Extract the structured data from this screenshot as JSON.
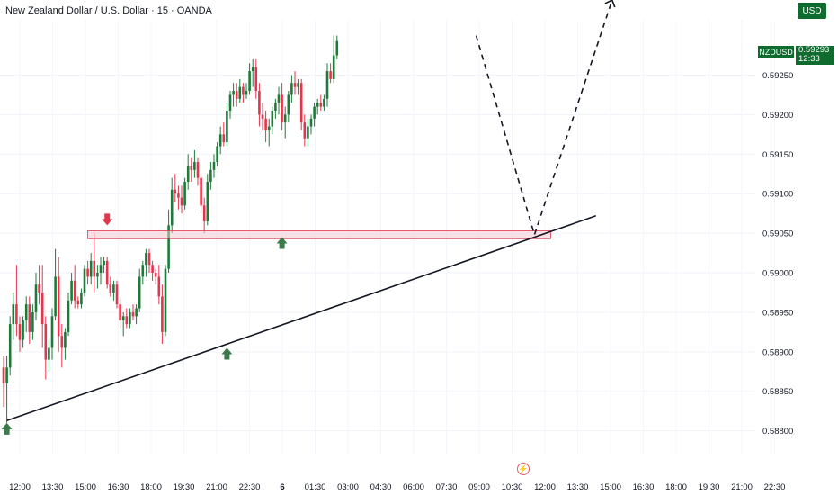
{
  "header": {
    "title": "New Zealand Dollar / U.S. Dollar · 15 · OANDA",
    "currency_button": "USD"
  },
  "price_badge": {
    "symbol": "NZDUSD",
    "price": "0.59293",
    "countdown": "12:33"
  },
  "icons": {
    "event_marker": "lightning-icon"
  },
  "colors": {
    "up": "#1f7a3a",
    "down": "#e0364e",
    "zone_fill": "#f6c9cf",
    "zone_stroke": "#e0364e",
    "trendline": "#131722",
    "arrow_up": "#3d7a4b",
    "arrow_down": "#e0364e"
  },
  "chart_data": {
    "type": "candlestick",
    "symbol": "NZDUSD",
    "timeframe": "15",
    "source": "OANDA",
    "x_ticks": [
      "12:00",
      "13:30",
      "15:00",
      "16:30",
      "18:00",
      "19:30",
      "21:00",
      "22:30",
      "6",
      "01:30",
      "03:00",
      "04:30",
      "06:00",
      "07:30",
      "09:00",
      "10:30",
      "12:00",
      "13:30",
      "15:00",
      "16:30",
      "18:00",
      "19:30",
      "21:00",
      "22:30"
    ],
    "y_ticks": [
      "0.58800",
      "0.58850",
      "0.58900",
      "0.58950",
      "0.59000",
      "0.59050",
      "0.59100",
      "0.59150",
      "0.59200",
      "0.59250"
    ],
    "ylim": [
      0.5877,
      0.5932
    ],
    "candles": [
      [
        0.5888,
        0.58895,
        0.5883,
        0.5886
      ],
      [
        0.5886,
        0.58895,
        0.5881,
        0.5888
      ],
      [
        0.5888,
        0.58945,
        0.5887,
        0.58935
      ],
      [
        0.58935,
        0.58975,
        0.58915,
        0.5896
      ],
      [
        0.5896,
        0.5901,
        0.5892,
        0.58935
      ],
      [
        0.58935,
        0.58945,
        0.589,
        0.58915
      ],
      [
        0.58915,
        0.58945,
        0.58905,
        0.5894
      ],
      [
        0.5894,
        0.5897,
        0.58925,
        0.5896
      ],
      [
        0.5896,
        0.5897,
        0.5891,
        0.58925
      ],
      [
        0.58925,
        0.5896,
        0.58915,
        0.5895
      ],
      [
        0.5895,
        0.59,
        0.5894,
        0.58985
      ],
      [
        0.58985,
        0.5901,
        0.5896,
        0.58975
      ],
      [
        0.58975,
        0.5901,
        0.58905,
        0.58935
      ],
      [
        0.58935,
        0.58945,
        0.58865,
        0.5889
      ],
      [
        0.5889,
        0.58915,
        0.58875,
        0.58905
      ],
      [
        0.58905,
        0.58955,
        0.5889,
        0.58945
      ],
      [
        0.58945,
        0.5903,
        0.5894,
        0.58995
      ],
      [
        0.58995,
        0.5902,
        0.589,
        0.5892
      ],
      [
        0.5892,
        0.58935,
        0.5888,
        0.58905
      ],
      [
        0.58905,
        0.5893,
        0.5889,
        0.58925
      ],
      [
        0.58925,
        0.58975,
        0.5892,
        0.58965
      ],
      [
        0.58965,
        0.59,
        0.5896,
        0.5899
      ],
      [
        0.5899,
        0.5901,
        0.58955,
        0.58965
      ],
      [
        0.58965,
        0.5897,
        0.58955,
        0.5896
      ],
      [
        0.5896,
        0.5898,
        0.58955,
        0.58975
      ],
      [
        0.58975,
        0.5901,
        0.5897,
        0.59005
      ],
      [
        0.59005,
        0.59015,
        0.58985,
        0.58995
      ],
      [
        0.58995,
        0.59025,
        0.58985,
        0.59015
      ],
      [
        0.59015,
        0.5905,
        0.58975,
        0.58995
      ],
      [
        0.58995,
        0.5901,
        0.5898,
        0.59
      ],
      [
        0.59,
        0.5902,
        0.58985,
        0.5901
      ],
      [
        0.5901,
        0.5902,
        0.59,
        0.59015
      ],
      [
        0.59015,
        0.5902,
        0.5898,
        0.58985
      ],
      [
        0.58985,
        0.58995,
        0.5897,
        0.58975
      ],
      [
        0.58975,
        0.5899,
        0.58965,
        0.58985
      ],
      [
        0.58985,
        0.5899,
        0.58955,
        0.5896
      ],
      [
        0.5896,
        0.5897,
        0.5893,
        0.5894
      ],
      [
        0.5894,
        0.5895,
        0.5892,
        0.58945
      ],
      [
        0.58945,
        0.58955,
        0.5893,
        0.58935
      ],
      [
        0.58935,
        0.58955,
        0.5893,
        0.5895
      ],
      [
        0.5895,
        0.5896,
        0.5894,
        0.58945
      ],
      [
        0.58945,
        0.5896,
        0.58935,
        0.58955
      ],
      [
        0.58955,
        0.59005,
        0.5895,
        0.58995
      ],
      [
        0.58995,
        0.59015,
        0.58985,
        0.5901
      ],
      [
        0.5901,
        0.5903,
        0.58995,
        0.59025
      ],
      [
        0.59025,
        0.5903,
        0.59,
        0.5901
      ],
      [
        0.5901,
        0.59015,
        0.5899,
        0.59
      ],
      [
        0.59,
        0.59005,
        0.58985,
        0.58995
      ],
      [
        0.58995,
        0.5901,
        0.5896,
        0.5897
      ],
      [
        0.5897,
        0.58985,
        0.5891,
        0.58925
      ],
      [
        0.58925,
        0.5901,
        0.5892,
        0.59005
      ],
      [
        0.59005,
        0.5908,
        0.59,
        0.5906
      ],
      [
        0.5906,
        0.5912,
        0.5905,
        0.59105
      ],
      [
        0.59105,
        0.59125,
        0.5909,
        0.591
      ],
      [
        0.591,
        0.5911,
        0.5908,
        0.59095
      ],
      [
        0.59095,
        0.5911,
        0.59075,
        0.59085
      ],
      [
        0.59085,
        0.5912,
        0.5908,
        0.59115
      ],
      [
        0.59115,
        0.5915,
        0.59105,
        0.59135
      ],
      [
        0.59135,
        0.59145,
        0.59115,
        0.5913
      ],
      [
        0.5913,
        0.59155,
        0.5912,
        0.5914
      ],
      [
        0.5914,
        0.59145,
        0.5911,
        0.5912
      ],
      [
        0.5912,
        0.59125,
        0.59075,
        0.59085
      ],
      [
        0.59085,
        0.59095,
        0.5905,
        0.59065
      ],
      [
        0.59065,
        0.59125,
        0.5906,
        0.59115
      ],
      [
        0.59115,
        0.5914,
        0.59105,
        0.5913
      ],
      [
        0.5913,
        0.5915,
        0.5912,
        0.5914
      ],
      [
        0.5914,
        0.59165,
        0.59135,
        0.5916
      ],
      [
        0.5916,
        0.59185,
        0.5915,
        0.59175
      ],
      [
        0.59175,
        0.5919,
        0.5916,
        0.59165
      ],
      [
        0.59165,
        0.59215,
        0.5916,
        0.59205
      ],
      [
        0.59205,
        0.5923,
        0.59195,
        0.59225
      ],
      [
        0.59225,
        0.5924,
        0.5921,
        0.5923
      ],
      [
        0.5923,
        0.5924,
        0.5921,
        0.5922
      ],
      [
        0.5922,
        0.59245,
        0.59215,
        0.59235
      ],
      [
        0.59235,
        0.5924,
        0.59215,
        0.59225
      ],
      [
        0.59225,
        0.5924,
        0.5922,
        0.5923
      ],
      [
        0.5923,
        0.59265,
        0.59225,
        0.59255
      ],
      [
        0.59255,
        0.5927,
        0.59235,
        0.5926
      ],
      [
        0.5926,
        0.5927,
        0.5922,
        0.5923
      ],
      [
        0.5923,
        0.5924,
        0.59185,
        0.592
      ],
      [
        0.592,
        0.59215,
        0.5918,
        0.59195
      ],
      [
        0.59195,
        0.59205,
        0.59165,
        0.5918
      ],
      [
        0.5918,
        0.59195,
        0.5916,
        0.59185
      ],
      [
        0.59185,
        0.5921,
        0.59175,
        0.59205
      ],
      [
        0.59205,
        0.5922,
        0.59195,
        0.59215
      ],
      [
        0.59215,
        0.59235,
        0.592,
        0.59225
      ],
      [
        0.59225,
        0.5924,
        0.5918,
        0.5919
      ],
      [
        0.5919,
        0.5921,
        0.5917,
        0.592
      ],
      [
        0.592,
        0.5923,
        0.5919,
        0.59225
      ],
      [
        0.59225,
        0.5925,
        0.59215,
        0.5924
      ],
      [
        0.5924,
        0.59255,
        0.59225,
        0.59235
      ],
      [
        0.59235,
        0.59245,
        0.59225,
        0.5924
      ],
      [
        0.5924,
        0.59245,
        0.5918,
        0.5919
      ],
      [
        0.5919,
        0.592,
        0.5916,
        0.5917
      ],
      [
        0.5917,
        0.59195,
        0.5916,
        0.59185
      ],
      [
        0.59185,
        0.592,
        0.59175,
        0.59195
      ],
      [
        0.59195,
        0.59215,
        0.59185,
        0.5921
      ],
      [
        0.5921,
        0.5922,
        0.592,
        0.59215
      ],
      [
        0.59215,
        0.59225,
        0.59205,
        0.5921
      ],
      [
        0.5921,
        0.59225,
        0.59205,
        0.5922
      ],
      [
        0.5922,
        0.59265,
        0.5921,
        0.59255
      ],
      [
        0.59255,
        0.59265,
        0.5924,
        0.59245
      ],
      [
        0.59245,
        0.593,
        0.5924,
        0.59275
      ],
      [
        0.59275,
        0.593,
        0.5927,
        0.59293
      ]
    ],
    "annotations": {
      "resistance_zone": {
        "y_low": 0.59043,
        "y_high": 0.59053,
        "from_index": 26,
        "to_index": 169
      },
      "trendline": {
        "from": [
          1,
          0.58813
        ],
        "to": [
          183,
          0.59072
        ]
      },
      "projection_path": [
        [
          146,
          0.593
        ],
        [
          164,
          0.59048
        ],
        [
          188,
          0.59345
        ]
      ],
      "up_arrows": [
        [
          1,
          0.5881
        ],
        [
          69,
          0.58905
        ],
        [
          86,
          0.59045
        ]
      ],
      "down_arrows": [
        [
          32,
          0.5906
        ]
      ]
    }
  }
}
